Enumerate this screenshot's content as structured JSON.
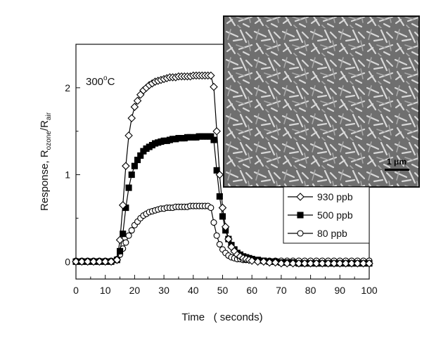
{
  "chart_data": {
    "type": "line",
    "title": "",
    "xlabel": "Time   ( seconds)",
    "ylabel_main": "Response, R",
    "ylabel_sub1": "ozone",
    "ylabel_mid": "/R",
    "ylabel_sub2": "air",
    "xlim": [
      0,
      100
    ],
    "ylim": [
      -0.2,
      2.5
    ],
    "xticks": [
      "0",
      "10",
      "20",
      "30",
      "40",
      "50",
      "60",
      "70",
      "80",
      "90",
      "100"
    ],
    "yticks": [
      "0",
      "1",
      "2"
    ],
    "annotation_temp": "300",
    "annotation_deg": "o",
    "annotation_unit": "C",
    "inset_scale_label": "1 μm",
    "legend_position": "right-middle",
    "grid": false,
    "x": [
      0,
      2,
      4,
      6,
      8,
      10,
      12,
      14,
      15,
      16,
      17,
      18,
      19,
      20,
      21,
      22,
      23,
      24,
      25,
      26,
      27,
      28,
      29,
      30,
      31,
      32,
      33,
      34,
      35,
      36,
      37,
      38,
      39,
      40,
      41,
      42,
      43,
      44,
      45,
      46,
      47,
      48,
      49,
      50,
      51,
      52,
      53,
      54,
      55,
      56,
      57,
      58,
      59,
      60,
      62,
      64,
      66,
      68,
      70,
      72,
      74,
      76,
      78,
      80,
      82,
      84,
      86,
      88,
      90,
      92,
      94,
      96,
      98,
      100
    ],
    "series": [
      {
        "name": "930 ppb",
        "marker": "diamond",
        "values": [
          0,
          0,
          0,
          0,
          0,
          0,
          0,
          0.02,
          0.25,
          0.65,
          1.1,
          1.45,
          1.65,
          1.78,
          1.85,
          1.92,
          1.97,
          2.0,
          2.03,
          2.05,
          2.07,
          2.08,
          2.09,
          2.1,
          2.11,
          2.12,
          2.12,
          2.12,
          2.13,
          2.13,
          2.13,
          2.13,
          2.13,
          2.14,
          2.14,
          2.14,
          2.14,
          2.14,
          2.14,
          2.14,
          2.01,
          1.5,
          1.0,
          0.62,
          0.4,
          0.26,
          0.17,
          0.12,
          0.08,
          0.06,
          0.04,
          0.03,
          0.02,
          0.01,
          0,
          0,
          -0.01,
          -0.01,
          -0.02,
          -0.02,
          -0.02,
          -0.02,
          -0.02,
          -0.02,
          -0.02,
          -0.02,
          -0.02,
          -0.02,
          -0.02,
          -0.02,
          -0.02,
          -0.02,
          -0.02,
          -0.02
        ]
      },
      {
        "name": "500 ppb",
        "marker": "square",
        "values": [
          0,
          0,
          0,
          0,
          0,
          0,
          0,
          0.02,
          0.12,
          0.32,
          0.62,
          0.85,
          1.0,
          1.1,
          1.17,
          1.22,
          1.27,
          1.3,
          1.32,
          1.34,
          1.36,
          1.37,
          1.38,
          1.39,
          1.39,
          1.4,
          1.41,
          1.41,
          1.42,
          1.42,
          1.42,
          1.43,
          1.43,
          1.43,
          1.43,
          1.44,
          1.44,
          1.44,
          1.44,
          1.44,
          1.4,
          1.05,
          0.75,
          0.52,
          0.36,
          0.26,
          0.19,
          0.14,
          0.1,
          0.08,
          0.06,
          0.05,
          0.04,
          0.03,
          0.02,
          0.01,
          0,
          0,
          -0.01,
          -0.01,
          -0.01,
          -0.02,
          -0.02,
          -0.02,
          -0.02,
          -0.02,
          -0.02,
          -0.02,
          -0.02,
          -0.02,
          -0.02,
          -0.02,
          -0.02,
          -0.02
        ]
      },
      {
        "name": "80 ppb",
        "marker": "circle",
        "values": [
          0.01,
          0.01,
          0.01,
          0.01,
          0.01,
          0.01,
          0.01,
          0.03,
          0.08,
          0.15,
          0.22,
          0.3,
          0.36,
          0.42,
          0.46,
          0.5,
          0.53,
          0.55,
          0.57,
          0.58,
          0.59,
          0.6,
          0.61,
          0.61,
          0.62,
          0.62,
          0.62,
          0.63,
          0.63,
          0.63,
          0.63,
          0.63,
          0.64,
          0.64,
          0.64,
          0.64,
          0.64,
          0.64,
          0.64,
          0.62,
          0.45,
          0.3,
          0.2,
          0.14,
          0.1,
          0.07,
          0.05,
          0.04,
          0.03,
          0.03,
          0.02,
          0.02,
          0.02,
          0.02,
          0.01,
          0.01,
          0.01,
          0.01,
          0.01,
          0.01,
          0.01,
          0.01,
          0.01,
          0.01,
          0.01,
          0.01,
          0.01,
          0.01,
          0.01,
          0.01,
          0.01,
          0.01,
          0.01,
          0.01
        ]
      }
    ]
  }
}
